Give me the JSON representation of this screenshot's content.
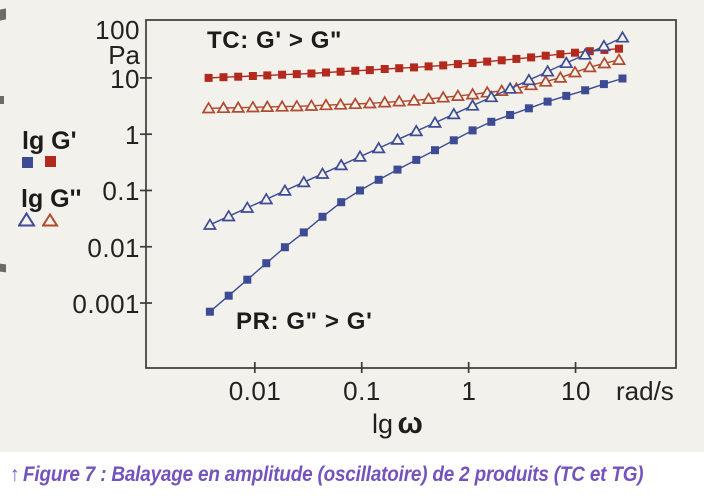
{
  "figure": {
    "caption_arrow": "↑",
    "caption_text": "Figure 7 : Balayage en amplitude (oscillatoire) de 2 produits (TC et TG)"
  },
  "colors": {
    "paper": "#f2f1ec",
    "ink": "#222220",
    "axis": "#3b3b38",
    "red_square": "#b2291e",
    "red_triangle": "#b04a2e",
    "blue": "#3c4b94",
    "caption": "#7453bd"
  },
  "legend": {
    "gprime_label": "lg G'",
    "gsecond_label": "lg G''"
  },
  "chart_data": {
    "type": "line",
    "scale": "log-log",
    "grid": false,
    "legend_position": "left",
    "xlabel_parts": [
      "lg",
      "ω"
    ],
    "x_unit": "rad/s",
    "y_unit": "Pa",
    "xlim": [
      0.00096,
      87
    ],
    "ylim": [
      7e-05,
      107
    ],
    "x_ticks": [
      0.01,
      0.1,
      1,
      10
    ],
    "x_tick_labels": [
      "0.01",
      "0.1",
      "1",
      "10"
    ],
    "y_ticks": [
      100,
      10,
      1,
      0.1,
      0.01,
      0.001
    ],
    "y_tick_labels": [
      "100",
      "10",
      "1",
      "0.1",
      "0.01",
      "0.001"
    ],
    "annotations": [
      {
        "text": "TC: G' > G\"",
        "region": "top"
      },
      {
        "text": "PR: G\" > G'",
        "region": "bottom"
      }
    ],
    "series": [
      {
        "name": "TC G' (storage modulus)",
        "marker": "filled-square",
        "color": "#b2291e",
        "x": [
          0.0037,
          0.0051,
          0.007,
          0.0096,
          0.0131,
          0.018,
          0.0247,
          0.0338,
          0.0463,
          0.0634,
          0.0871,
          0.119,
          0.164,
          0.224,
          0.308,
          0.422,
          0.578,
          0.793,
          1.09,
          1.49,
          2.04,
          2.8,
          3.84,
          5.26,
          7.21,
          9.89,
          13.6,
          18.6,
          25.5
        ],
        "y": [
          10,
          10.3,
          10.5,
          10.8,
          11.1,
          11.4,
          11.7,
          12,
          12.5,
          12.9,
          13.4,
          13.8,
          14.4,
          14.9,
          15.4,
          16,
          16.7,
          17.6,
          18.4,
          19.5,
          20.6,
          21.8,
          23.2,
          24.8,
          26.4,
          28.1,
          29.9,
          31.5,
          33.1
        ]
      },
      {
        "name": "TC G\" (loss modulus)",
        "marker": "open-triangle",
        "color": "#b04a2e",
        "x": [
          0.0037,
          0.0051,
          0.007,
          0.0096,
          0.0131,
          0.018,
          0.0247,
          0.0338,
          0.0463,
          0.0634,
          0.0871,
          0.119,
          0.164,
          0.224,
          0.308,
          0.422,
          0.578,
          0.793,
          1.09,
          1.49,
          2.04,
          2.8,
          3.84,
          5.26,
          7.21,
          9.89,
          13.6,
          18.6,
          25.5
        ],
        "y": [
          2.88,
          2.92,
          2.96,
          3,
          3.05,
          3.09,
          3.13,
          3.2,
          3.29,
          3.36,
          3.44,
          3.54,
          3.67,
          3.82,
          3.96,
          4.22,
          4.49,
          4.79,
          5.1,
          5.5,
          5.89,
          6.47,
          7.46,
          8.59,
          10.1,
          12.6,
          15.5,
          18.2,
          20.9
        ]
      },
      {
        "name": "PR G' (storage modulus)",
        "marker": "filled-square",
        "color": "#3c4b94",
        "x": [
          0.0038,
          0.0057,
          0.0085,
          0.0128,
          0.0191,
          0.0287,
          0.043,
          0.0643,
          0.0964,
          0.144,
          0.216,
          0.324,
          0.485,
          0.726,
          1.09,
          1.63,
          2.44,
          3.66,
          5.48,
          8.2,
          12.3,
          18.4,
          27.5
        ],
        "y": [
          0.0007,
          0.00135,
          0.0026,
          0.0051,
          0.0098,
          0.018,
          0.034,
          0.062,
          0.1,
          0.155,
          0.235,
          0.35,
          0.52,
          0.78,
          1.17,
          1.66,
          2.19,
          2.88,
          3.8,
          4.79,
          6.03,
          7.76,
          9.77
        ]
      },
      {
        "name": "PR G\" (loss modulus)",
        "marker": "open-triangle",
        "color": "#3c4b94",
        "x": [
          0.0038,
          0.0057,
          0.0085,
          0.0128,
          0.0191,
          0.0287,
          0.043,
          0.0643,
          0.0964,
          0.144,
          0.216,
          0.324,
          0.485,
          0.726,
          1.09,
          1.63,
          2.44,
          3.66,
          5.48,
          8.2,
          12.3,
          18.4,
          27.5
        ],
        "y": [
          0.0245,
          0.0348,
          0.0492,
          0.0698,
          0.0989,
          0.14,
          0.198,
          0.281,
          0.398,
          0.563,
          0.799,
          1.13,
          1.6,
          2.27,
          3.22,
          4.56,
          6.46,
          9.14,
          13,
          18.4,
          26,
          36.8,
          52.2
        ]
      }
    ]
  }
}
